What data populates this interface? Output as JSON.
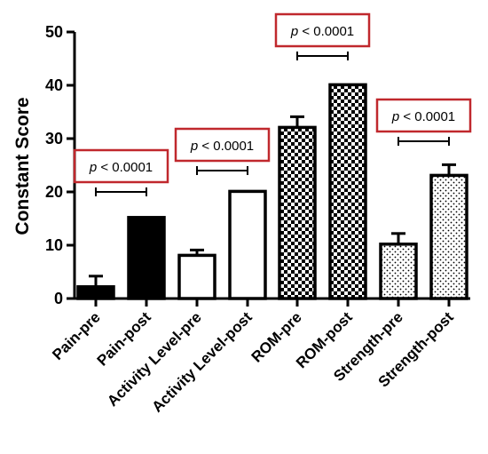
{
  "chart_data": {
    "type": "bar",
    "ylabel": "Constant Score",
    "ylim": [
      0,
      50
    ],
    "yticks": [
      "0",
      "10",
      "20",
      "30",
      "40",
      "50"
    ],
    "categories": [
      "Pain-pre",
      "Pain-post",
      "Activity Level-pre",
      "Activity Level-post",
      "ROM-pre",
      "ROM-post",
      "Strength-pre",
      "Strength-post"
    ],
    "values": [
      2.2,
      15.2,
      8.1,
      20.1,
      32.1,
      40.1,
      10.2,
      23.1
    ],
    "error": [
      2.0,
      0,
      1.0,
      0,
      2.0,
      0,
      2.0,
      2.0
    ],
    "fills": [
      "solid-black",
      "solid-black",
      "white",
      "white",
      "checker",
      "checker",
      "dots",
      "dots"
    ],
    "annotations": [
      {
        "pair": [
          0,
          1
        ],
        "bracket_y": 20,
        "p_prefix": "p",
        "p_rest": " < 0.0001"
      },
      {
        "pair": [
          2,
          3
        ],
        "bracket_y": 24,
        "p_prefix": "p",
        "p_rest": " < 0.0001"
      },
      {
        "pair": [
          4,
          5
        ],
        "bracket_y": 45.5,
        "p_prefix": "p",
        "p_rest": " < 0.0001"
      },
      {
        "pair": [
          6,
          7
        ],
        "bracket_y": 29.5,
        "p_prefix": "p",
        "p_rest": " < 0.0001"
      }
    ],
    "colors": {
      "bar_stroke": "#000000",
      "box_stroke": "#c0282d"
    }
  }
}
